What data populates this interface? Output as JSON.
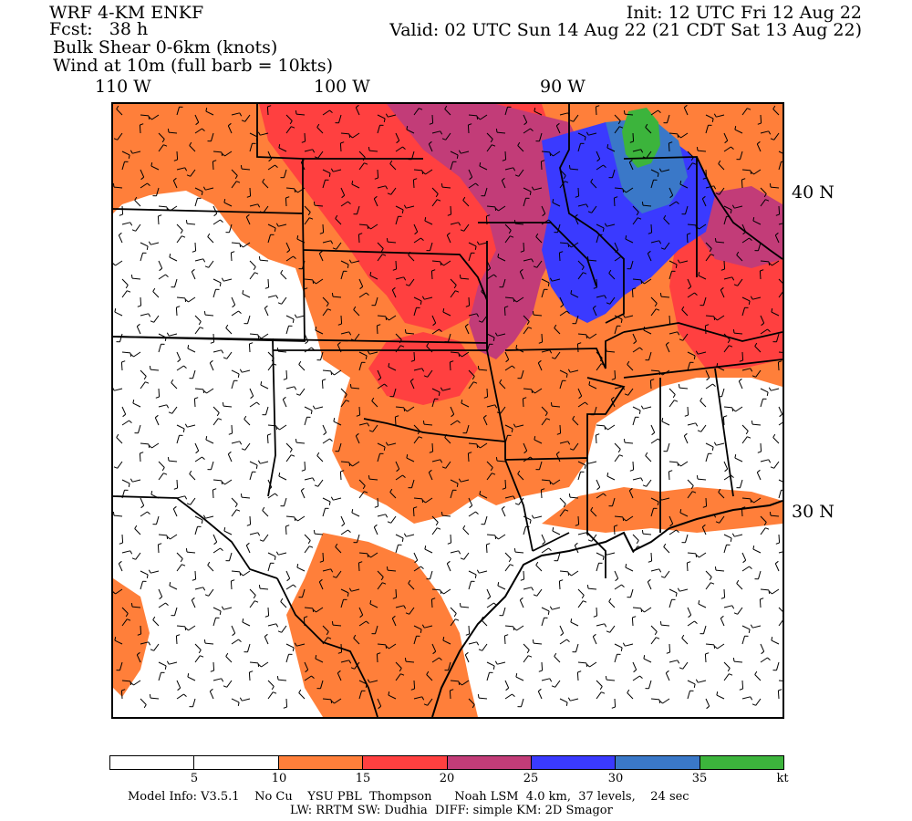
{
  "header": {
    "model": "WRF 4-KM ENKF",
    "fcst": "Fcst:   38 h",
    "field1": "Bulk Shear 0-6km (knots)",
    "field2": "Wind at 10m (full barb = 10kts)",
    "init": "Init: 12 UTC Fri 12 Aug 22",
    "valid": "Valid: 02 UTC Sun 14 Aug 22 (21 CDT Sat 13 Aug 22)"
  },
  "axes": {
    "lon_labels": [
      "110 W",
      "100 W",
      "90 W"
    ],
    "lat_labels": [
      "40 N",
      "30 N"
    ]
  },
  "colorbar": {
    "colors": [
      "#ffffff",
      "#ffffff",
      "#ff7f3a",
      "#ff4040",
      "#c23c78",
      "#3a3aff",
      "#3a78c8",
      "#3cb43c"
    ],
    "tick_labels": [
      "5",
      "10",
      "15",
      "20",
      "25",
      "30",
      "35",
      "kt"
    ]
  },
  "footer": {
    "line1": "Model Info: V3.5.1    No Cu    YSU PBL  Thompson      Noah LSM  4.0 km,  37 levels,    24 sec",
    "line2": "LW: RRTM SW: Dudhia  DIFF: simple KM: 2D Smagor"
  },
  "colors": {
    "c10": "#ff7f3a",
    "c15": "#ff4040",
    "c20": "#c23c78",
    "c25": "#3a3aff",
    "c30": "#3a78c8",
    "c35": "#3cb43c"
  }
}
